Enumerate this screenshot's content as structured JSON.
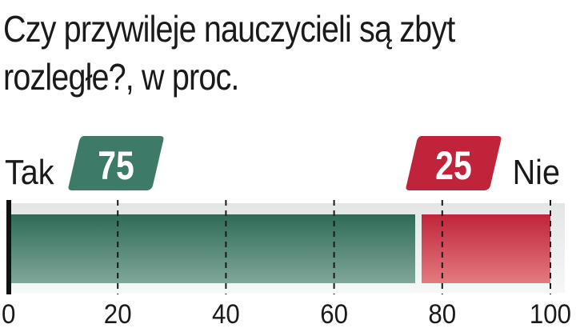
{
  "title": "Czy przywileje nauczycieli są zbyt rozległe?, w proc.",
  "chart_data": {
    "type": "bar",
    "orientation": "horizontal-stacked",
    "title": "Czy przywileje nauczycieli są zbyt rozległe?, w proc.",
    "series": [
      {
        "name": "Tak",
        "value": 75,
        "color": "#3b7463",
        "label_color": "#3d7a67"
      },
      {
        "name": "Nie",
        "value": 25,
        "color": "#c0243a",
        "label_color": "#c0243a"
      }
    ],
    "xlim": [
      0,
      100
    ],
    "xticks": [
      0,
      20,
      40,
      60,
      80,
      100
    ],
    "grid": true,
    "xlabel": "",
    "ylabel": ""
  }
}
